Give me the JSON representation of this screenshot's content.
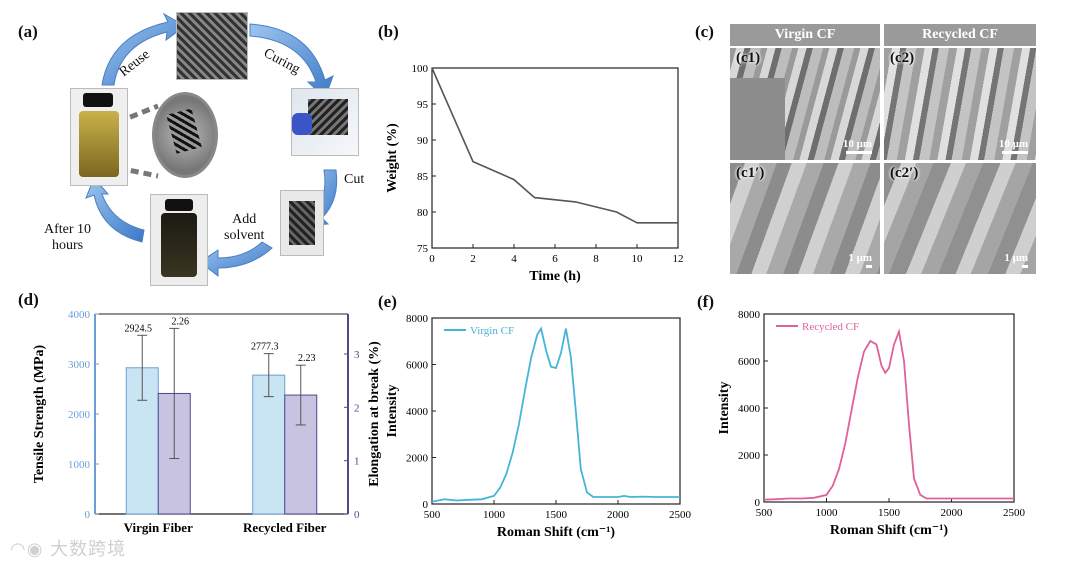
{
  "panel_labels": {
    "a": "(a)",
    "b": "(b)",
    "c": "(c)",
    "d": "(d)",
    "e": "(e)",
    "f": "(f)"
  },
  "cycle": {
    "reuse": "Reuse",
    "curing": "Curing",
    "cut": "Cut",
    "add_solvent": "Add\nsolvent",
    "after_hours": "After 10\nhours"
  },
  "sem": {
    "header_virgin": "Virgin CF",
    "header_recycled": "Recycled CF",
    "c1": "(c1)",
    "c2": "(c2)",
    "c1p": "(c1′)",
    "c2p": "(c2′)",
    "scale_10": "10 μm",
    "scale_1": "1 μm"
  },
  "watermark": "大数跨境",
  "colors": {
    "virgin": "#46b4d7",
    "recycled": "#e0609a",
    "weight_line": "#555555",
    "bar_blue_fill": "#c9e4f3",
    "bar_purple_fill": "#c9c3e2",
    "axis_blue": "#6a9fd6",
    "axis_purple": "#4a4a8c"
  },
  "chart_data": [
    {
      "id": "b",
      "type": "line",
      "x": [
        0,
        2,
        4,
        5,
        7,
        9,
        10,
        12
      ],
      "y": [
        100,
        87,
        84.5,
        82,
        81.4,
        80,
        78.5,
        78.5
      ],
      "xlabel": "Time (h)",
      "ylabel": "Weight (%)",
      "xlim": [
        0,
        12
      ],
      "ylim": [
        75,
        100
      ],
      "xticks": [
        0,
        2,
        4,
        6,
        8,
        10,
        12
      ],
      "yticks": [
        75,
        80,
        85,
        90,
        95,
        100
      ]
    },
    {
      "id": "d",
      "type": "bar",
      "categories": [
        "Virgin Fiber",
        "Recycled Fiber"
      ],
      "series": [
        {
          "name": "Tensile Strength",
          "axis": "left",
          "values": [
            2924.5,
            2777.3
          ],
          "err": [
            650,
            430
          ],
          "labels": [
            "2924.5",
            "2777.3"
          ]
        },
        {
          "name": "Elongation at break",
          "axis": "right",
          "values": [
            2.26,
            2.23
          ],
          "err": [
            1.22,
            0.56
          ],
          "labels": [
            "2.26",
            "2.23"
          ]
        }
      ],
      "ylabel": "Tensile Strength (MPa)",
      "y2label": "Elongation at break (%)",
      "ylim": [
        0,
        4000
      ],
      "y2lim": [
        0,
        3.75
      ],
      "yticks": [
        0,
        1000,
        2000,
        3000,
        4000
      ],
      "y2ticks": [
        0,
        1,
        2,
        3
      ]
    },
    {
      "id": "e",
      "type": "line",
      "series": [
        {
          "name": "Virgin CF",
          "x": [
            500,
            600,
            700,
            800,
            900,
            1000,
            1050,
            1100,
            1150,
            1200,
            1250,
            1300,
            1350,
            1380,
            1420,
            1460,
            1500,
            1540,
            1580,
            1620,
            1660,
            1700,
            1750,
            1800,
            1900,
            2000,
            2050,
            2100,
            2200,
            2300,
            2400,
            2500
          ],
          "y": [
            100,
            200,
            150,
            180,
            200,
            350,
            700,
            1300,
            2200,
            3400,
            4900,
            6300,
            7300,
            7550,
            6600,
            5900,
            5850,
            6500,
            7550,
            6300,
            4000,
            1500,
            500,
            300,
            300,
            300,
            350,
            300,
            320,
            300,
            300,
            300
          ]
        }
      ],
      "xlabel": "Roman Shift (cm⁻¹)",
      "ylabel": "Intensity",
      "xlim": [
        500,
        2500
      ],
      "ylim": [
        0,
        8000
      ],
      "xticks": [
        500,
        1000,
        1500,
        2000,
        2500
      ],
      "yticks": [
        0,
        2000,
        4000,
        6000,
        8000
      ]
    },
    {
      "id": "f",
      "type": "line",
      "series": [
        {
          "name": "Recycled CF",
          "x": [
            500,
            600,
            700,
            800,
            900,
            1000,
            1050,
            1100,
            1150,
            1200,
            1250,
            1300,
            1350,
            1400,
            1440,
            1470,
            1500,
            1540,
            1580,
            1620,
            1660,
            1700,
            1750,
            1800,
            1900,
            2000,
            2100,
            2200,
            2300,
            2400,
            2500
          ],
          "y": [
            100,
            120,
            150,
            150,
            180,
            300,
            700,
            1400,
            2500,
            3900,
            5300,
            6400,
            6850,
            6700,
            5800,
            5500,
            5700,
            6700,
            7250,
            6000,
            3300,
            1000,
            300,
            150,
            150,
            150,
            150,
            150,
            150,
            150,
            150
          ]
        }
      ],
      "xlabel": "Roman Shift (cm⁻¹)",
      "ylabel": "Intensity",
      "xlim": [
        500,
        2500
      ],
      "ylim": [
        0,
        8000
      ],
      "xticks": [
        500,
        1000,
        1500,
        2000,
        2500
      ],
      "yticks": [
        0,
        2000,
        4000,
        6000,
        8000
      ]
    }
  ]
}
